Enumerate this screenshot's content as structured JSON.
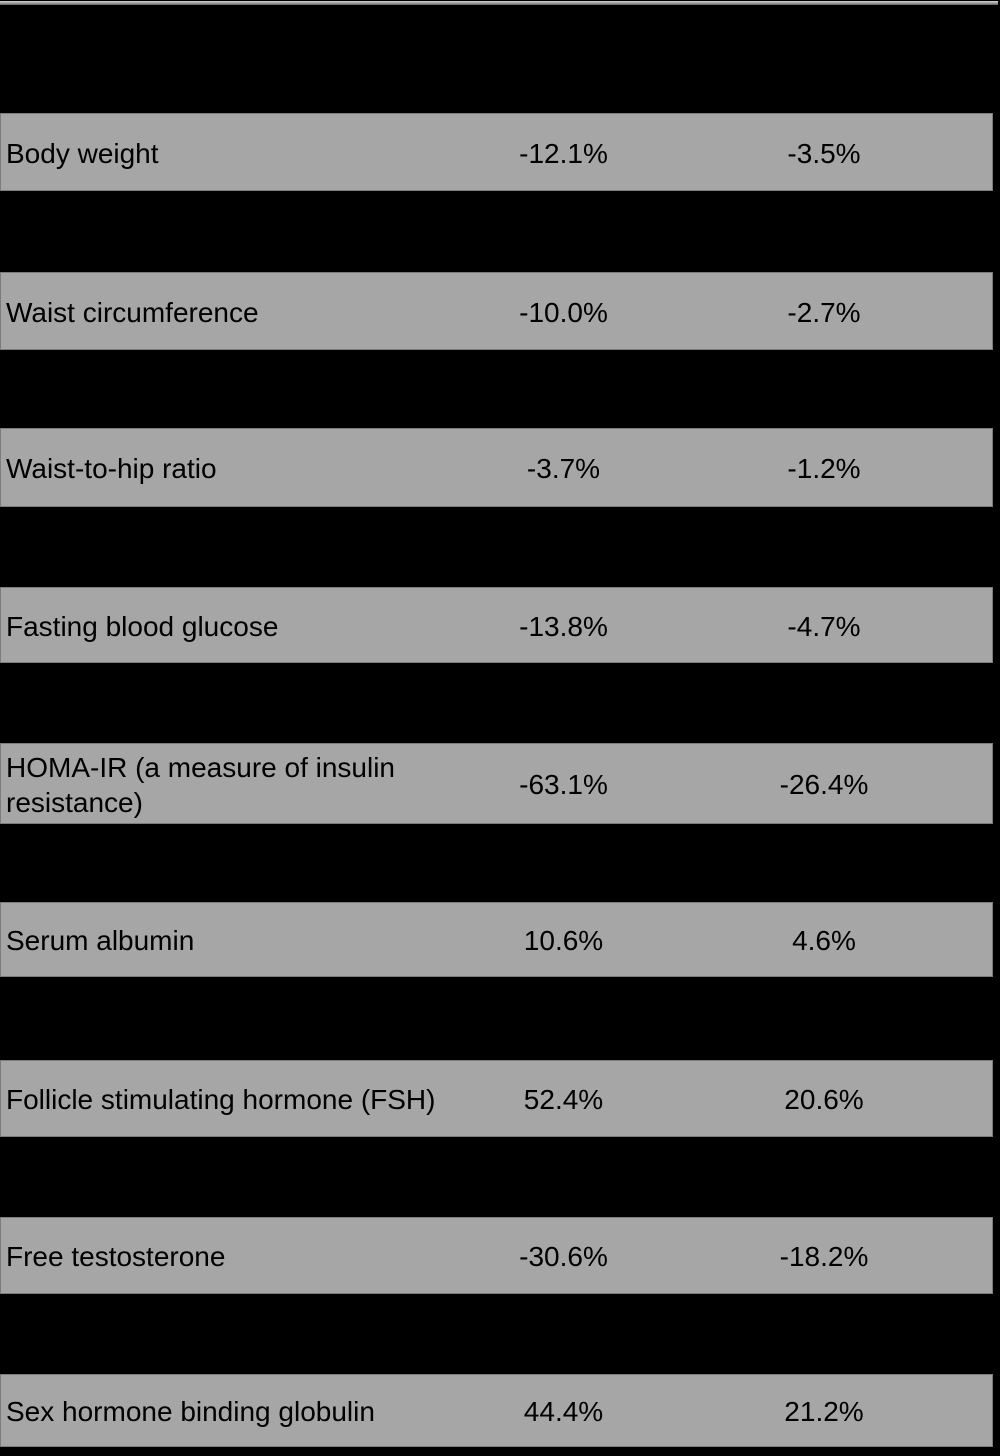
{
  "colors": {
    "page_background": "#000000",
    "row_background": "#a6a6a6",
    "row_border": "#7c7c7c",
    "text": "#000000"
  },
  "table": {
    "rows": [
      {
        "label": "Body weight",
        "col2": "-12.1%",
        "col3": "-3.5%"
      },
      {
        "label": "Waist circumference",
        "col2": "-10.0%",
        "col3": "-2.7%"
      },
      {
        "label": "Waist-to-hip ratio",
        "col2": "-3.7%",
        "col3": "-1.2%"
      },
      {
        "label": "Fasting blood glucose",
        "col2": "-13.8%",
        "col3": "-4.7%"
      },
      {
        "label": "HOMA-IR (a measure of insulin resistance)",
        "col2": "-63.1%",
        "col3": "-26.4%"
      },
      {
        "label": "Serum albumin",
        "col2": "10.6%",
        "col3": "4.6%"
      },
      {
        "label": "Follicle stimulating hormone (FSH)",
        "col2": "52.4%",
        "col3": "20.6%"
      },
      {
        "label": "Free testosterone",
        "col2": "-30.6%",
        "col3": "-18.2%"
      },
      {
        "label": "Sex hormone binding globulin",
        "col2": "44.4%",
        "col3": "21.2%"
      }
    ]
  },
  "chart_data": {
    "type": "table",
    "categories": [
      "Body weight",
      "Waist circumference",
      "Waist-to-hip ratio",
      "Fasting blood glucose",
      "HOMA-IR (a measure of insulin resistance)",
      "Serum albumin",
      "Follicle stimulating hormone (FSH)",
      "Free testosterone",
      "Sex hormone binding globulin"
    ],
    "series": [
      {
        "name": "column_2_percent_change",
        "values": [
          -12.1,
          -10.0,
          -3.7,
          -13.8,
          -63.1,
          10.6,
          52.4,
          -30.6,
          44.4
        ]
      },
      {
        "name": "column_3_percent_change",
        "values": [
          -3.5,
          -2.7,
          -1.2,
          -4.7,
          -26.4,
          4.6,
          20.6,
          -18.2,
          21.2
        ]
      }
    ],
    "units": "%",
    "title": "",
    "layout_note": "striped table; header row and alternate rows are unreadable (black on black)"
  }
}
